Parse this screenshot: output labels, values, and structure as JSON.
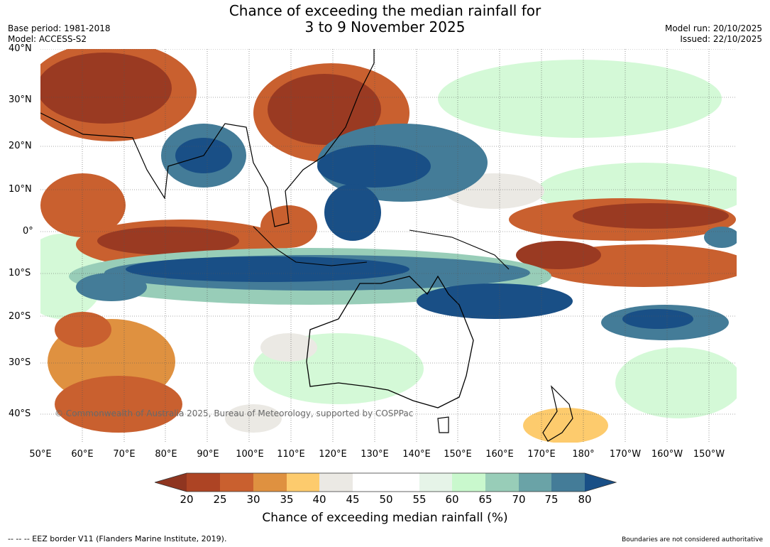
{
  "title": {
    "line1": "Chance of exceeding the median rainfall for",
    "line2": "3 to 9 November 2025"
  },
  "meta": {
    "base_period": "Base period: 1981-2018",
    "model": "Model: ACCESS-S2",
    "model_run": "Model run: 20/10/2025",
    "issued": "Issued: 22/10/2025"
  },
  "lat_labels": [
    "40°N",
    "30°N",
    "20°N",
    "10°N",
    "0°",
    "10°S",
    "20°S",
    "30°S",
    "40°S"
  ],
  "lon_labels": [
    "50°E",
    "60°E",
    "70°E",
    "80°E",
    "90°E",
    "100°E",
    "110°E",
    "120°E",
    "130°E",
    "140°E",
    "150°E",
    "160°E",
    "170°E",
    "180°",
    "170°W",
    "160°W",
    "150°W"
  ],
  "copyright": "© Commonwealth of Australia 2025, Bureau of Meteorology, supported by COSPPac",
  "colorbar": {
    "ticks": [
      "20",
      "25",
      "30",
      "35",
      "40",
      "45",
      "50",
      "55",
      "60",
      "65",
      "70",
      "75",
      "80"
    ],
    "colors": [
      "#8f3520",
      "#ad4424",
      "#c9602f",
      "#df9140",
      "#fdcb6d",
      "#ebe9e4",
      "#ffffff",
      "#ffffff",
      "#e6f4e8",
      "#c9f8cd",
      "#98cdb8",
      "#6aa3a7",
      "#447c98",
      "#194f86"
    ],
    "label": "Chance of exceeding median rainfall (%)"
  },
  "footer": {
    "eez": "--  --  -- EEZ border V11 (Flanders Marine Institute, 2019).",
    "boundaries": "Boundaries are not considered authoritative"
  },
  "colors": {
    "brown": "#9a3a22",
    "orange": "#c9602f",
    "tan": "#df9140",
    "yellow": "#fdcb6d",
    "grey": "#ebe9e4",
    "lightgreen": "#c9f8cd",
    "teal": "#98cdb8",
    "blue": "#447c98",
    "darkblue": "#194f86"
  }
}
